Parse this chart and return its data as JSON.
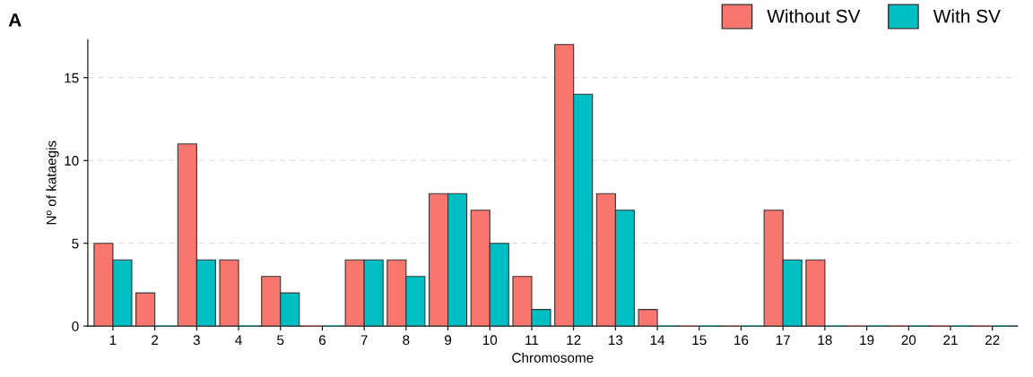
{
  "chart_data": {
    "type": "bar",
    "xlabel": "Chromosome",
    "ylabel": "Nº of kataegis",
    "categories": [
      "1",
      "2",
      "3",
      "4",
      "5",
      "6",
      "7",
      "8",
      "9",
      "10",
      "11",
      "12",
      "13",
      "14",
      "15",
      "16",
      "17",
      "18",
      "19",
      "20",
      "21",
      "22"
    ],
    "series": [
      {
        "name": "Without SV",
        "color": "#f8766d",
        "values": [
          5,
          2,
          11,
          4,
          3,
          0,
          4,
          4,
          8,
          7,
          3,
          17,
          8,
          1,
          0,
          0,
          7,
          4,
          0,
          0,
          0,
          0
        ]
      },
      {
        "name": "With SV",
        "color": "#00bfc4",
        "values": [
          4,
          0,
          4,
          0,
          2,
          0,
          4,
          3,
          8,
          5,
          1,
          14,
          7,
          0,
          0,
          0,
          4,
          0,
          0,
          0,
          0,
          0
        ]
      }
    ],
    "ylim": [
      0,
      17.3
    ],
    "yticks": [
      0,
      5,
      10,
      15
    ],
    "grid": "y",
    "legend": "top right",
    "annotations": [
      "A"
    ]
  }
}
